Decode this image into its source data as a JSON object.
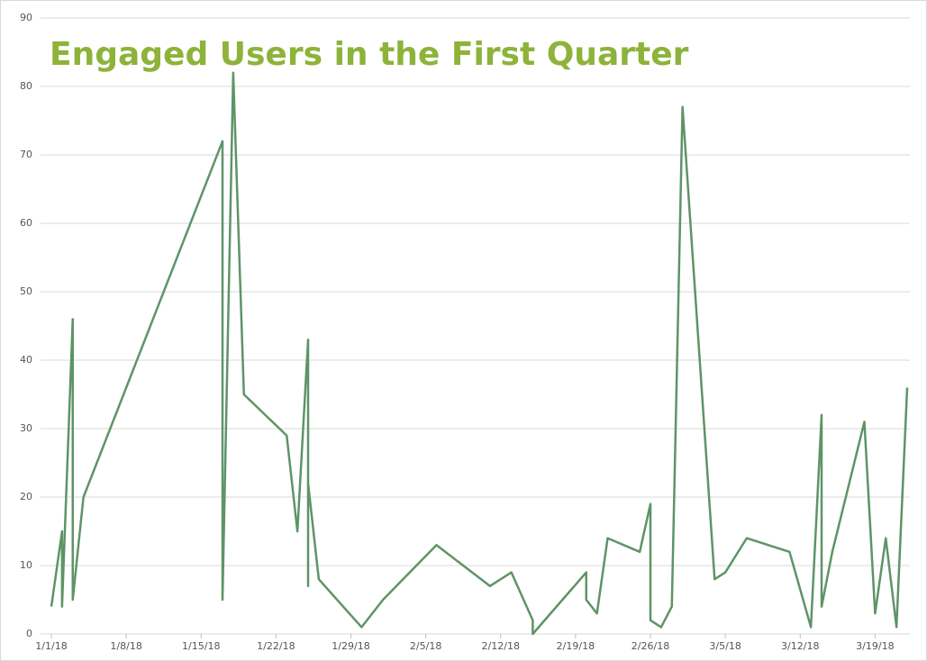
{
  "chart_data": {
    "type": "line",
    "title": "Engaged Users in the First Quarter",
    "x": [
      "1/1/18",
      "1/2/18",
      "1/2/18",
      "1/3/18",
      "1/3/18",
      "1/4/18",
      "1/17/18",
      "1/17/18",
      "1/18/18",
      "1/19/18",
      "1/23/18",
      "1/24/18",
      "1/25/18",
      "1/25/18",
      "1/25/18",
      "1/26/18",
      "1/30/18",
      "2/1/18",
      "2/6/18",
      "2/11/18",
      "2/13/18",
      "2/15/18",
      "2/15/18",
      "2/20/18",
      "2/20/18",
      "2/21/18",
      "2/22/18",
      "2/25/18",
      "2/26/18",
      "2/26/18",
      "2/27/18",
      "2/28/18",
      "3/1/18",
      "3/4/18",
      "3/5/18",
      "3/7/18",
      "3/11/18",
      "3/13/18",
      "3/14/18",
      "3/14/18",
      "3/15/18",
      "3/18/18",
      "3/19/18",
      "3/20/18",
      "3/21/18",
      "3/22/18"
    ],
    "series": [
      {
        "name": "Engaged Users",
        "color": "#5e9467",
        "values": [
          4,
          15,
          4,
          46,
          5,
          20,
          72,
          5,
          82,
          35,
          29,
          15,
          43,
          7,
          22,
          8,
          1,
          5,
          13,
          7,
          9,
          2,
          0,
          9,
          5,
          3,
          14,
          12,
          19,
          2,
          1,
          4,
          77,
          8,
          9,
          14,
          12,
          1,
          32,
          4,
          12,
          31,
          3,
          14,
          1,
          36
        ]
      }
    ],
    "xlim": [
      "1/1/18",
      "3/22/18"
    ],
    "xticks": [
      "1/1/18",
      "1/8/18",
      "1/15/18",
      "1/22/18",
      "1/29/18",
      "2/5/18",
      "2/12/18",
      "2/19/18",
      "2/26/18",
      "3/5/18",
      "3/12/18",
      "3/19/18"
    ],
    "ylim": [
      0,
      90
    ],
    "yticks": [
      0,
      10,
      20,
      30,
      40,
      50,
      60,
      70,
      80,
      90
    ],
    "grid": true
  }
}
